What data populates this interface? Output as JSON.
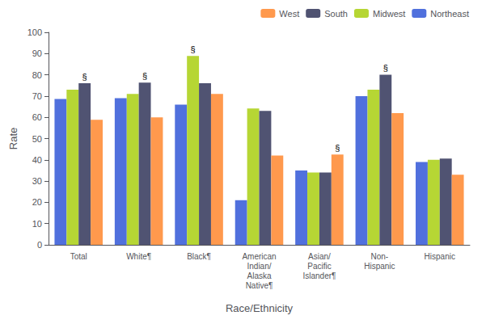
{
  "chart_data": {
    "type": "bar",
    "xlabel": "Race/Ethnicity",
    "ylabel": "Rate",
    "categories": [
      "Total",
      "White¶",
      "Black¶",
      "American\nIndian/\nAlaska\nNative¶",
      "Asian/\nPacific\nIslander¶",
      "Non-\nHispanic",
      "Hispanic"
    ],
    "series": [
      {
        "name": "Northeast",
        "values": [
          68.6,
          69.0,
          66.0,
          21.0,
          35.0,
          70.0,
          39.0
        ]
      },
      {
        "name": "Midwest",
        "values": [
          73.0,
          71.0,
          88.9,
          64.2,
          34.0,
          73.0,
          40.0
        ]
      },
      {
        "name": "South",
        "values": [
          76.0,
          76.3,
          76.0,
          63.0,
          34.0,
          80.0,
          40.6
        ]
      },
      {
        "name": "West",
        "values": [
          58.8,
          60.0,
          71.0,
          42.0,
          42.5,
          62.0,
          33.0
        ]
      }
    ],
    "annotations": [
      {
        "text": "§",
        "category": "Total",
        "series": "South"
      },
      {
        "text": "§",
        "category": "White¶",
        "series": "South"
      },
      {
        "text": "§",
        "category": "Black¶",
        "series": "Midwest"
      },
      {
        "text": "§",
        "category": "Asian/\nPacific\nIslander¶",
        "series": "West"
      },
      {
        "text": "§",
        "category": "Non-\nHispanic",
        "series": "South"
      }
    ],
    "ylim": [
      0,
      100
    ],
    "yticks": [
      0,
      10,
      20,
      30,
      40,
      50,
      60,
      70,
      80,
      90,
      100
    ],
    "grid": false,
    "legend": "upper right"
  }
}
